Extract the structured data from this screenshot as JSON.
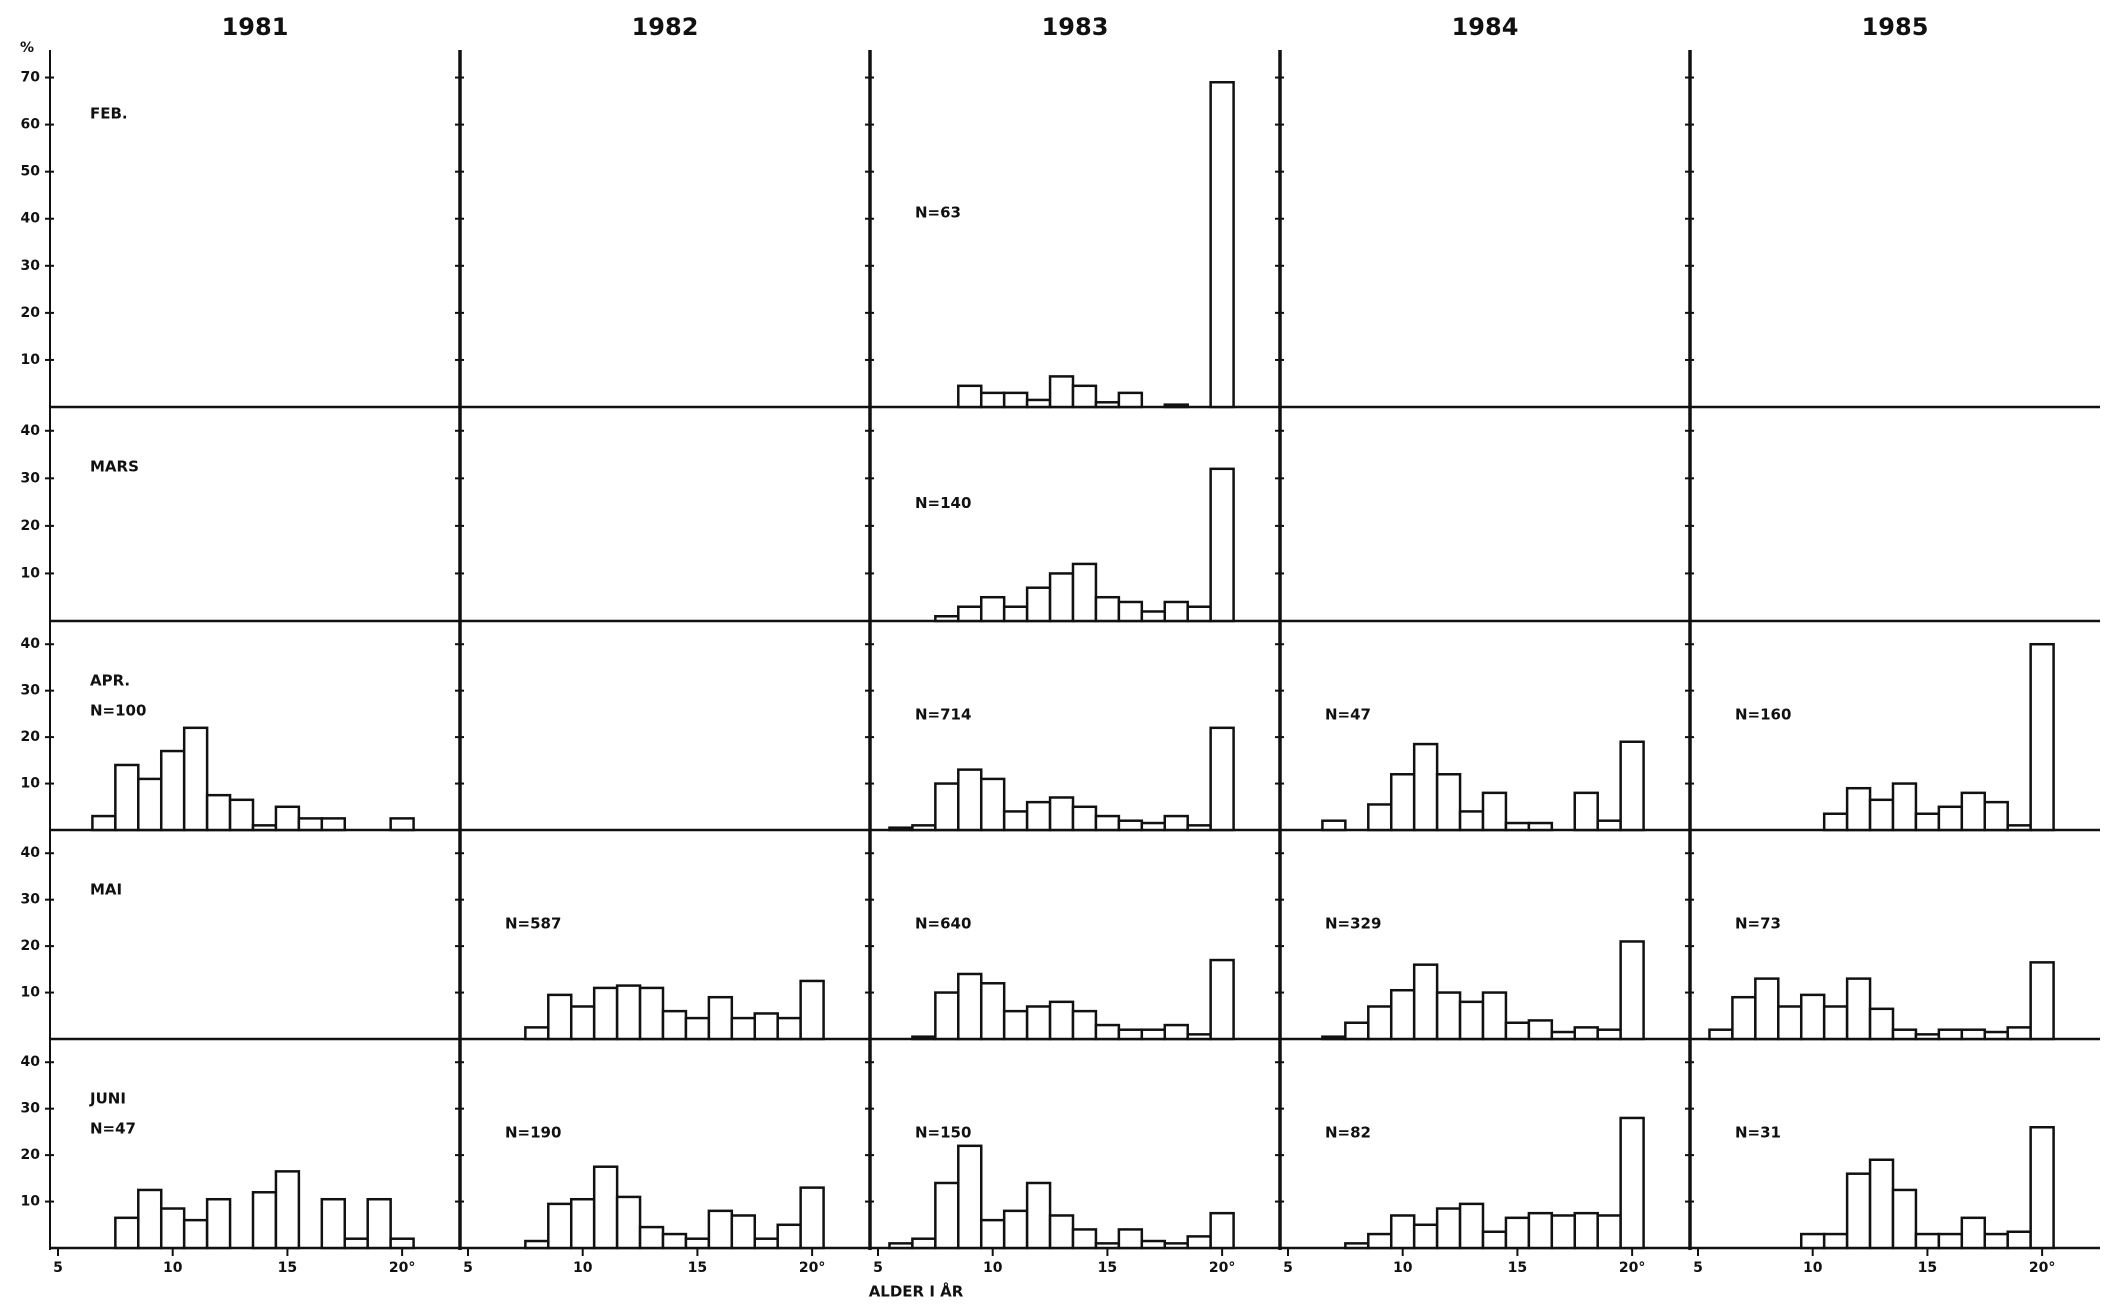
{
  "chart_data": {
    "type": "histogram-grid",
    "y_label": "%",
    "x_label": "ALDER I ÅR",
    "color": "#111111",
    "columns": [
      "1981",
      "1982",
      "1983",
      "1984",
      "1985"
    ],
    "xlim": [
      5,
      22
    ],
    "xticks": [
      5,
      10,
      15,
      {
        "value": 20,
        "label": "20°"
      }
    ],
    "rows": [
      {
        "label": "FEB.",
        "ylim": [
          0,
          75
        ],
        "yticks": [
          10,
          20,
          30,
          40,
          50,
          60,
          70
        ],
        "panels": [
          null,
          null,
          {
            "n_label": "N=63",
            "x": [
              9,
              10,
              11,
              12,
              13,
              14,
              15,
              16,
              18,
              20
            ],
            "values": [
              4.5,
              3,
              3,
              1.5,
              6.5,
              4.5,
              1,
              3,
              0.5,
              69
            ]
          },
          null,
          null
        ]
      },
      {
        "label": "MARS",
        "ylim": [
          0,
          45
        ],
        "yticks": [
          10,
          20,
          30,
          40
        ],
        "panels": [
          null,
          null,
          {
            "n_label": "N=140",
            "x": [
              8,
              9,
              10,
              11,
              12,
              13,
              14,
              15,
              16,
              17,
              18,
              19,
              20
            ],
            "values": [
              1,
              3,
              5,
              3,
              7,
              10,
              12,
              5,
              4,
              2,
              4,
              3,
              32
            ]
          },
          null,
          null
        ]
      },
      {
        "label": "APR.",
        "ylim": [
          0,
          45
        ],
        "yticks": [
          10,
          20,
          30,
          40
        ],
        "panels": [
          {
            "n_label": "N=100",
            "x": [
              7,
              8,
              9,
              10,
              11,
              12,
              13,
              14,
              15,
              16,
              17,
              20
            ],
            "values": [
              3,
              14,
              11,
              17,
              22,
              7.5,
              6.5,
              1,
              5,
              2.5,
              2.5,
              2.5
            ]
          },
          null,
          {
            "n_label": "N=714",
            "x": [
              6,
              7,
              8,
              9,
              10,
              11,
              12,
              13,
              14,
              15,
              16,
              17,
              18,
              19,
              20
            ],
            "values": [
              0.5,
              1,
              10,
              13,
              11,
              4,
              6,
              7,
              5,
              3,
              2,
              1.5,
              3,
              1,
              22
            ]
          },
          {
            "n_label": "N=47",
            "x": [
              7,
              9,
              10,
              11,
              12,
              13,
              14,
              15,
              16,
              18,
              19,
              20
            ],
            "values": [
              2,
              5.5,
              12,
              18.5,
              12,
              4,
              8,
              1.5,
              1.5,
              8,
              2,
              19
            ]
          },
          {
            "n_label": "N=160",
            "x": [
              11,
              12,
              13,
              14,
              15,
              16,
              17,
              18,
              19,
              20
            ],
            "values": [
              3.5,
              9,
              6.5,
              10,
              3.5,
              5,
              8,
              6,
              1,
              40
            ]
          }
        ]
      },
      {
        "label": "MAI",
        "ylim": [
          0,
          45
        ],
        "yticks": [
          10,
          20,
          30,
          40
        ],
        "panels": [
          null,
          {
            "n_label": "N=587",
            "x": [
              8,
              9,
              10,
              11,
              12,
              13,
              14,
              15,
              16,
              17,
              18,
              19,
              20
            ],
            "values": [
              2.5,
              9.5,
              7,
              11,
              11.5,
              11,
              6,
              4.5,
              9,
              4.5,
              5.5,
              4.5,
              12.5
            ]
          },
          {
            "n_label": "N=640",
            "x": [
              7,
              8,
              9,
              10,
              11,
              12,
              13,
              14,
              15,
              16,
              17,
              18,
              19,
              20
            ],
            "values": [
              0.5,
              10,
              14,
              12,
              6,
              7,
              8,
              6,
              3,
              2,
              2,
              3,
              1,
              17
            ]
          },
          {
            "n_label": "N=329",
            "x": [
              7,
              8,
              9,
              10,
              11,
              12,
              13,
              14,
              15,
              16,
              17,
              18,
              19,
              20
            ],
            "values": [
              0.5,
              3.5,
              7,
              10.5,
              16,
              10,
              8,
              10,
              3.5,
              4,
              1.5,
              2.5,
              2,
              21
            ]
          },
          {
            "n_label": "N=73",
            "x": [
              6,
              7,
              8,
              9,
              10,
              11,
              12,
              13,
              14,
              15,
              16,
              17,
              18,
              19,
              20
            ],
            "values": [
              2,
              9,
              13,
              7,
              9.5,
              7,
              13,
              6.5,
              2,
              1,
              2,
              2,
              1.5,
              2.5,
              16.5
            ]
          }
        ]
      },
      {
        "label": "JUNI",
        "ylim": [
          0,
          45
        ],
        "yticks": [
          10,
          20,
          30,
          40
        ],
        "panels": [
          {
            "n_label": "N=47",
            "x": [
              8,
              9,
              10,
              11,
              12,
              14,
              15,
              17,
              18,
              19,
              20
            ],
            "values": [
              6.5,
              12.5,
              8.5,
              6,
              10.5,
              12,
              16.5,
              10.5,
              2,
              10.5,
              2
            ]
          },
          {
            "n_label": "N=190",
            "x": [
              8,
              9,
              10,
              11,
              12,
              13,
              14,
              15,
              16,
              17,
              18,
              19,
              20
            ],
            "values": [
              1.5,
              9.5,
              10.5,
              17.5,
              11,
              4.5,
              3,
              2,
              8,
              7,
              2,
              5,
              13
            ]
          },
          {
            "n_label": "N=150",
            "x": [
              6,
              7,
              8,
              9,
              10,
              11,
              12,
              13,
              14,
              15,
              16,
              17,
              18,
              19,
              20
            ],
            "values": [
              1,
              2,
              14,
              22,
              6,
              8,
              14,
              7,
              4,
              1,
              4,
              1.5,
              1,
              2.5,
              7.5
            ]
          },
          {
            "n_label": "N=82",
            "x": [
              8,
              9,
              10,
              11,
              12,
              13,
              14,
              15,
              16,
              17,
              18,
              19,
              20
            ],
            "values": [
              1,
              3,
              7,
              5,
              8.5,
              9.5,
              3.5,
              6.5,
              7.5,
              7,
              7.5,
              7,
              28
            ]
          },
          {
            "n_label": "N=31",
            "x": [
              10,
              11,
              12,
              13,
              14,
              15,
              16,
              17,
              18,
              19,
              20
            ],
            "values": [
              3,
              3,
              16,
              19,
              12.5,
              3,
              3,
              6.5,
              3,
              3.5,
              26
            ]
          }
        ]
      }
    ]
  }
}
